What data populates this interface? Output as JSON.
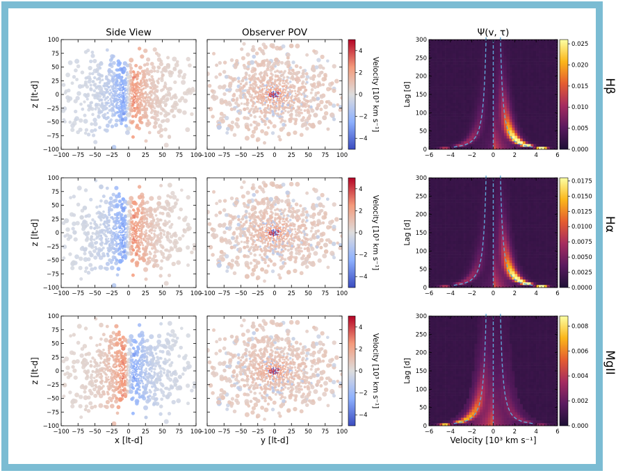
{
  "figure": {
    "border_color": "#7bbcd3",
    "column_titles": [
      "Side View",
      "Observer POV",
      "Ψ(v, τ)"
    ],
    "line_labels": [
      "Hβ",
      "Hα",
      "MgII"
    ],
    "colorscale_velocity": [
      "#3b4cc0",
      "#8db0fe",
      "#dddddd",
      "#f49a7b",
      "#b40426"
    ],
    "colorscale_psi": [
      "#1d0f35",
      "#5a1a5f",
      "#a52c60",
      "#e55c30",
      "#fbb61a",
      "#fcffa4"
    ],
    "transfer_curve_color": "#5fa8d8"
  },
  "chart_data": [
    {
      "type": "scatter",
      "panel": "Hβ side view",
      "title": "Side View",
      "xlabel": "",
      "ylabel": "z [lt-d]",
      "xlim": [
        -100,
        100
      ],
      "ylim": [
        -100,
        100
      ],
      "xticks": [
        "−100",
        "−75",
        "−50",
        "−25",
        "0",
        "25",
        "50",
        "75",
        "100"
      ],
      "yticks": [
        "100",
        "75",
        "50",
        "25",
        "0",
        "−25",
        "−50",
        "−75",
        "−100"
      ],
      "color_by": "velocity",
      "velocity_sign": "receding to +x (red at x>0, blue at x<0)"
    },
    {
      "type": "scatter",
      "panel": "Hβ observer POV",
      "title": "Observer POV",
      "xlabel": "",
      "xlim": [
        -100,
        100
      ],
      "ylim": [
        -100,
        100
      ],
      "xticks": [
        "−100",
        "−75",
        "−50",
        "−25",
        "0",
        "25",
        "50",
        "75",
        "100"
      ],
      "colorbar": {
        "label": "Velocity [10³ km s⁻¹]",
        "range": [
          -5,
          5
        ],
        "ticks": [
          "4",
          "2",
          "0",
          "−2",
          "−4"
        ]
      }
    },
    {
      "type": "heatmap",
      "panel": "Hβ transfer function",
      "title": "Ψ(v, τ)",
      "ylabel": "Lag [d]",
      "xlim": [
        -6,
        6
      ],
      "ylim": [
        0,
        300
      ],
      "xticks": [
        "−6",
        "−4",
        "−2",
        "0",
        "2",
        "4",
        "6"
      ],
      "yticks": [
        "300",
        "250",
        "200",
        "150",
        "100",
        "50",
        "0"
      ],
      "colorbar": {
        "range": [
          0,
          0.026
        ],
        "ticks": [
          "0.025",
          "0.020",
          "0.015",
          "0.010",
          "0.005",
          "0.000"
        ]
      },
      "skew": "red"
    },
    {
      "type": "scatter",
      "panel": "Hα side view",
      "ylabel": "z [lt-d]",
      "xlim": [
        -100,
        100
      ],
      "ylim": [
        -100,
        100
      ],
      "xticks": [
        "−100",
        "−75",
        "−50",
        "−25",
        "0",
        "25",
        "50",
        "75",
        "100"
      ],
      "yticks": [
        "100",
        "75",
        "50",
        "25",
        "0",
        "−25",
        "−50",
        "−75",
        "−100"
      ]
    },
    {
      "type": "scatter",
      "panel": "Hα observer POV",
      "xlim": [
        -100,
        100
      ],
      "ylim": [
        -100,
        100
      ],
      "xticks": [
        "−100",
        "−75",
        "−50",
        "−25",
        "0",
        "25",
        "50",
        "75",
        "100"
      ],
      "colorbar": {
        "label": "Velocity [10³ km s⁻¹]",
        "range": [
          -5,
          5
        ],
        "ticks": [
          "4",
          "2",
          "0",
          "−2",
          "−4"
        ]
      }
    },
    {
      "type": "heatmap",
      "panel": "Hα transfer function",
      "ylabel": "Lag [d]",
      "xlim": [
        -6,
        6
      ],
      "ylim": [
        0,
        300
      ],
      "xticks": [
        "−6",
        "−4",
        "−2",
        "0",
        "2",
        "4",
        "6"
      ],
      "yticks": [
        "300",
        "250",
        "200",
        "150",
        "100",
        "50",
        "0"
      ],
      "colorbar": {
        "range": [
          0,
          0.018
        ],
        "ticks": [
          "0.0175",
          "0.0150",
          "0.0125",
          "0.0100",
          "0.0075",
          "0.0050",
          "0.0025",
          "0.0000"
        ]
      },
      "skew": "red"
    },
    {
      "type": "scatter",
      "panel": "MgII side view",
      "xlabel": "x [lt-d]",
      "ylabel": "z [lt-d]",
      "xlim": [
        -100,
        100
      ],
      "ylim": [
        -100,
        100
      ],
      "xticks": [
        "−100",
        "−75",
        "−50",
        "−25",
        "0",
        "25",
        "50",
        "75",
        "100"
      ],
      "yticks": [
        "100",
        "75",
        "50",
        "25",
        "0",
        "−25",
        "−50",
        "−75",
        "−100"
      ],
      "velocity_sign": "approaching to +x (red at x<0, blue at x>0)"
    },
    {
      "type": "scatter",
      "panel": "MgII observer POV",
      "xlabel": "y [lt-d]",
      "xlim": [
        -100,
        100
      ],
      "ylim": [
        -100,
        100
      ],
      "xticks": [
        "−100",
        "−75",
        "−50",
        "−25",
        "0",
        "25",
        "50",
        "75",
        "100"
      ],
      "colorbar": {
        "label": "Velocity [10³ km s⁻¹]",
        "range": [
          -5,
          5
        ],
        "ticks": [
          "4",
          "2",
          "0",
          "−2",
          "−4"
        ]
      }
    },
    {
      "type": "heatmap",
      "panel": "MgII transfer function",
      "xlabel": "Velocity [10³ km s⁻¹]",
      "ylabel": "Lag [d]",
      "xlim": [
        -6,
        6
      ],
      "ylim": [
        0,
        300
      ],
      "xticks": [
        "−6",
        "−4",
        "−2",
        "0",
        "2",
        "4",
        "6"
      ],
      "yticks": [
        "300",
        "250",
        "200",
        "150",
        "100",
        "50",
        "0"
      ],
      "colorbar": {
        "range": [
          0,
          0.0088
        ],
        "ticks": [
          "0.008",
          "0.006",
          "0.004",
          "0.002",
          "0.000"
        ]
      },
      "skew": "blue"
    }
  ]
}
